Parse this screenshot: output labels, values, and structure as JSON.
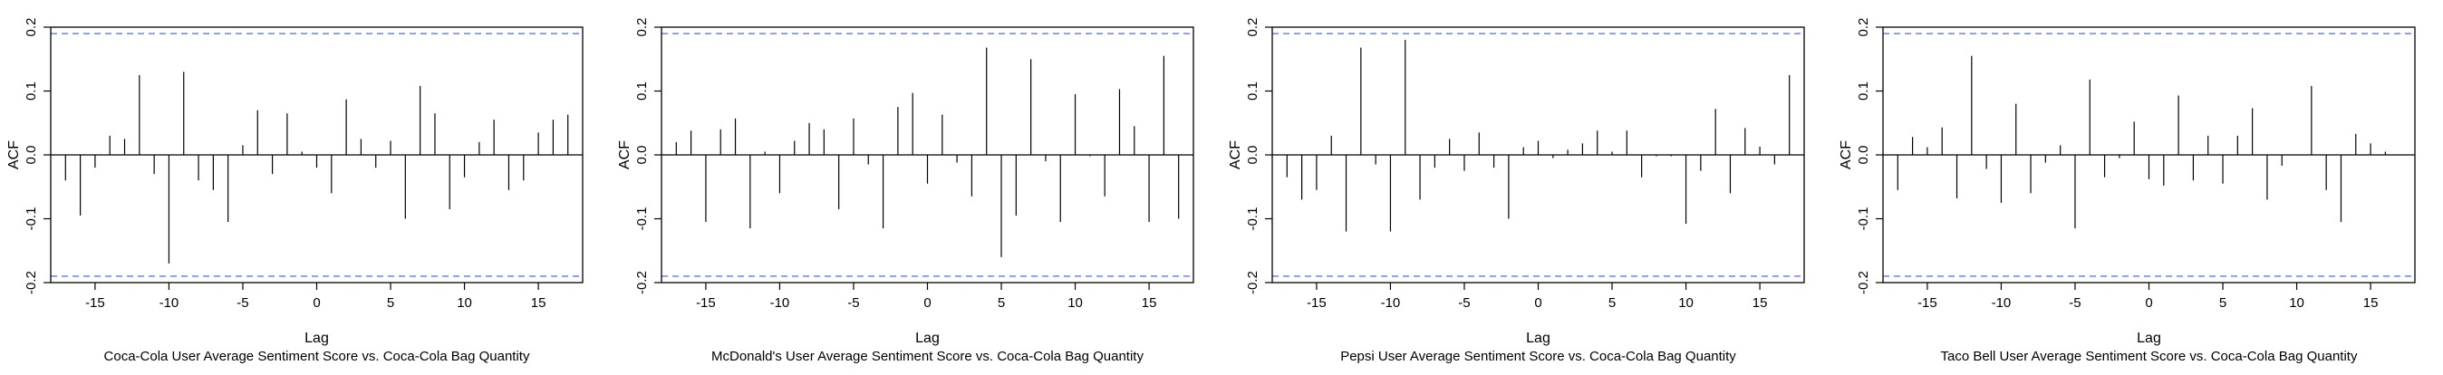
{
  "chart_data": [
    {
      "type": "bar",
      "subtype": "acf",
      "title": "Coca-Cola User Average Sentiment Score vs. Coca-Cola Bag Quantity",
      "xlabel": "Lag",
      "ylabel": "ACF",
      "xlim": [
        -18,
        18
      ],
      "ylim": [
        -0.2,
        0.2
      ],
      "xticks": [
        -15,
        -10,
        -5,
        0,
        5,
        10,
        15
      ],
      "xtick_labels": [
        "-15",
        "-10",
        "-5",
        "0",
        "5",
        "10",
        "15"
      ],
      "yticks": [
        -0.2,
        -0.1,
        0.0,
        0.1,
        0.2
      ],
      "ytick_labels": [
        "-0.2",
        "-0.1",
        "0.0",
        "0.1",
        "0.2"
      ],
      "confidence_bound": 0.19,
      "colors": {
        "bars": "#000000",
        "confidence": "#3b5bd6"
      },
      "x": [
        -17,
        -16,
        -15,
        -14,
        -13,
        -12,
        -11,
        -10,
        -9,
        -8,
        -7,
        -6,
        -5,
        -4,
        -3,
        -2,
        -1,
        0,
        1,
        2,
        3,
        4,
        5,
        6,
        7,
        8,
        9,
        10,
        11,
        12,
        13,
        14,
        15,
        16,
        17
      ],
      "values": [
        -0.04,
        -0.095,
        -0.02,
        0.03,
        0.025,
        0.125,
        -0.03,
        -0.17,
        0.13,
        -0.04,
        -0.055,
        -0.105,
        0.015,
        0.07,
        -0.03,
        0.065,
        0.005,
        -0.02,
        -0.06,
        0.087,
        0.025,
        -0.02,
        0.022,
        -0.1,
        0.108,
        0.065,
        -0.085,
        -0.035,
        0.02,
        0.055,
        -0.055,
        -0.04,
        0.035,
        0.055,
        0.063
      ]
    },
    {
      "type": "bar",
      "subtype": "acf",
      "title": "McDonald's User Average Sentiment Score vs. Coca-Cola Bag Quantity",
      "xlabel": "Lag",
      "ylabel": "ACF",
      "xlim": [
        -18,
        18
      ],
      "ylim": [
        -0.2,
        0.2
      ],
      "xticks": [
        -15,
        -10,
        -5,
        0,
        5,
        10,
        15
      ],
      "xtick_labels": [
        "-15",
        "-10",
        "-5",
        "0",
        "5",
        "10",
        "15"
      ],
      "yticks": [
        -0.2,
        -0.1,
        0.0,
        0.1,
        0.2
      ],
      "ytick_labels": [
        "-0.2",
        "-0.1",
        "0.0",
        "0.1",
        "0.2"
      ],
      "confidence_bound": 0.19,
      "colors": {
        "bars": "#000000",
        "confidence": "#3b5bd6"
      },
      "x": [
        -17,
        -16,
        -15,
        -14,
        -13,
        -12,
        -11,
        -10,
        -9,
        -8,
        -7,
        -6,
        -5,
        -4,
        -3,
        -2,
        -1,
        0,
        1,
        2,
        3,
        4,
        5,
        6,
        7,
        8,
        9,
        10,
        11,
        12,
        13,
        14,
        15,
        16,
        17
      ],
      "values": [
        0.02,
        0.038,
        -0.105,
        0.04,
        0.057,
        -0.115,
        0.005,
        -0.06,
        0.022,
        0.05,
        0.04,
        -0.085,
        0.057,
        -0.015,
        -0.115,
        0.075,
        0.097,
        -0.045,
        0.063,
        -0.012,
        -0.065,
        0.168,
        -0.16,
        -0.095,
        0.15,
        -0.01,
        -0.105,
        0.095,
        -0.002,
        -0.065,
        0.103,
        0.045,
        -0.105,
        0.155,
        -0.1
      ]
    },
    {
      "type": "bar",
      "subtype": "acf",
      "title": "Pepsi User Average Sentiment Score vs. Coca-Cola Bag Quantity",
      "xlabel": "Lag",
      "ylabel": "ACF",
      "xlim": [
        -18,
        18
      ],
      "ylim": [
        -0.2,
        0.2
      ],
      "xticks": [
        -15,
        -10,
        -5,
        0,
        5,
        10,
        15
      ],
      "xtick_labels": [
        "-15",
        "-10",
        "-5",
        "0",
        "5",
        "10",
        "15"
      ],
      "yticks": [
        -0.2,
        -0.1,
        0.0,
        0.1,
        0.2
      ],
      "ytick_labels": [
        "-0.2",
        "-0.1",
        "0.0",
        "0.1",
        "0.2"
      ],
      "confidence_bound": 0.19,
      "colors": {
        "bars": "#000000",
        "confidence": "#3b5bd6"
      },
      "x": [
        -17,
        -16,
        -15,
        -14,
        -13,
        -12,
        -11,
        -10,
        -9,
        -8,
        -7,
        -6,
        -5,
        -4,
        -3,
        -2,
        -1,
        0,
        1,
        2,
        3,
        4,
        5,
        6,
        7,
        8,
        9,
        10,
        11,
        12,
        13,
        14,
        15,
        16,
        17
      ],
      "values": [
        -0.035,
        -0.07,
        -0.055,
        0.03,
        -0.12,
        0.168,
        -0.015,
        -0.12,
        0.18,
        -0.07,
        -0.02,
        0.025,
        -0.025,
        0.035,
        -0.02,
        -0.1,
        0.012,
        0.022,
        -0.005,
        0.008,
        0.018,
        0.038,
        0.005,
        0.038,
        -0.035,
        -0.002,
        -0.002,
        -0.108,
        -0.025,
        0.072,
        -0.06,
        0.042,
        0.013,
        -0.015,
        0.125
      ]
    },
    {
      "type": "bar",
      "subtype": "acf",
      "title": "Taco Bell User Average Sentiment Score vs. Coca-Cola Bag Quantity",
      "xlabel": "Lag",
      "ylabel": "ACF",
      "xlim": [
        -18,
        18
      ],
      "ylim": [
        -0.2,
        0.2
      ],
      "xticks": [
        -15,
        -10,
        -5,
        0,
        5,
        10,
        15
      ],
      "xtick_labels": [
        "-15",
        "-10",
        "-5",
        "0",
        "5",
        "10",
        "15"
      ],
      "yticks": [
        -0.2,
        -0.1,
        0.0,
        0.1,
        0.2
      ],
      "ytick_labels": [
        "-0.2",
        "-0.1",
        "0.0",
        "0.1",
        "0.2"
      ],
      "confidence_bound": 0.19,
      "colors": {
        "bars": "#000000",
        "confidence": "#3b5bd6"
      },
      "x": [
        -17,
        -16,
        -15,
        -14,
        -13,
        -12,
        -11,
        -10,
        -9,
        -8,
        -7,
        -6,
        -5,
        -4,
        -3,
        -2,
        -1,
        0,
        1,
        2,
        3,
        4,
        5,
        6,
        7,
        8,
        9,
        10,
        11,
        12,
        13,
        14,
        15,
        16,
        17
      ],
      "values": [
        -0.055,
        0.028,
        0.012,
        0.043,
        -0.068,
        0.155,
        -0.022,
        -0.075,
        0.08,
        -0.06,
        -0.012,
        0.015,
        -0.115,
        0.118,
        -0.035,
        -0.005,
        0.052,
        -0.038,
        -0.048,
        0.093,
        -0.04,
        0.03,
        -0.045,
        0.03,
        0.073,
        -0.07,
        -0.017,
        0.0,
        0.108,
        -0.055,
        -0.105,
        0.033,
        0.018,
        0.005,
        0.0
      ]
    }
  ]
}
